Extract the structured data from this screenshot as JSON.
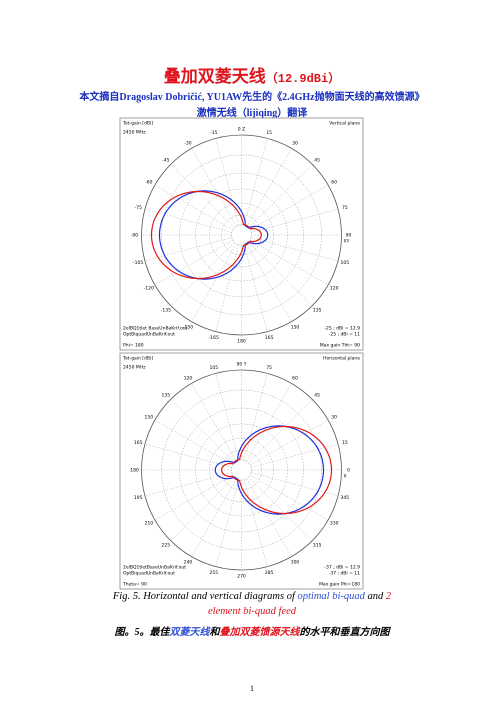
{
  "header": {
    "title": "叠加双菱天线",
    "title_gain": "（12.9dBi）",
    "source": "本文摘自Dragoslav Dobričić, YU1AW先生的《2.4GHz抛物面天线的高效馈源》",
    "translator": "激情无线（lijiqing）翻译"
  },
  "figures": [
    {
      "header_left": "Tot-gain [dBi]",
      "header_right": "Vertical plane",
      "frequency": "2450 MHz",
      "axis_label": "XY",
      "angle_labels": [
        "0  Z",
        "15",
        "30",
        "45",
        "60",
        "75",
        "90",
        "105",
        "120",
        "135",
        "150",
        "165",
        "180",
        "-165",
        "-150",
        "-135",
        "-120",
        "-105",
        "-90",
        "-75",
        "-60",
        "-45",
        "-30",
        "-15"
      ],
      "legend": [
        "2elBQ1tlet BaseUnBaKrif.out",
        "OptBiquadUnBaKrif.out"
      ],
      "legend_values": [
        "-25 ; dBi = 12.9",
        "-25 ; dBi = 11"
      ],
      "footer_left": "Phi= 180",
      "footer_right": "Max gain Tht= 90"
    },
    {
      "header_left": "Tot-gain [dBi]",
      "header_right": "Horizontal plane",
      "frequency": "2450 MHz",
      "axis_label": "X",
      "angle_labels": [
        "90  Y",
        "75",
        "60",
        "45",
        "30",
        "15",
        "0",
        "345",
        "330",
        "315",
        "300",
        "285",
        "270",
        "255",
        "240",
        "225",
        "210",
        "195",
        "180",
        "165",
        "150",
        "135",
        "120",
        "105"
      ],
      "legend": [
        "2elBQ1tletBaseUnBaKrif.out",
        "OptBiquadUnBaKrif.out"
      ],
      "legend_values": [
        "-37 ; dBi = 12.9",
        "-37 ; dBi = 11"
      ],
      "footer_left": "Theta= 90",
      "footer_right": "Max gain Phi=180"
    }
  ],
  "caption": {
    "en": [
      "Fig. 5. Horizontal and vertical diagrams of ",
      "optimal bi-quad",
      " and ",
      "2 element bi-quad feed"
    ],
    "zh": [
      "图。5。最佳",
      "双菱天线",
      "和",
      "叠加双菱馈源天线",
      "的水平和垂直方向图"
    ]
  },
  "page_number": "1"
}
